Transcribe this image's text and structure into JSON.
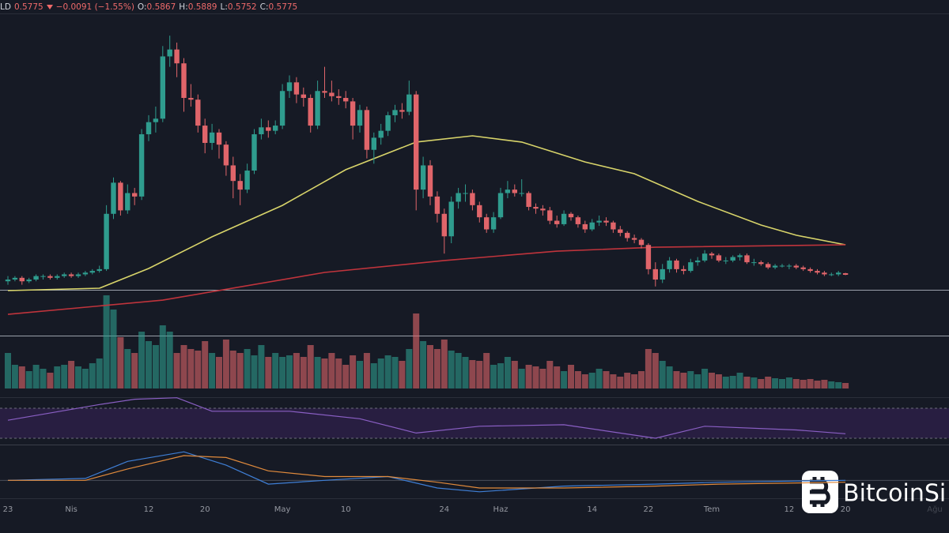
{
  "chart_data": {
    "type": "candlestick",
    "header": {
      "symbol": "LD",
      "change": "−0.0091 (−1.55%)",
      "ohlc_labels": [
        "O:",
        "H:",
        "L:",
        "C:"
      ]
    },
    "categories": [
      "23",
      null,
      null,
      null,
      null,
      null,
      null,
      null,
      null,
      "Nis",
      null,
      null,
      null,
      null,
      null,
      null,
      null,
      null,
      null,
      null,
      "12",
      null,
      null,
      null,
      null,
      null,
      null,
      null,
      "20",
      null,
      null,
      null,
      null,
      null,
      null,
      null,
      null,
      null,
      null,
      "May",
      null,
      null,
      null,
      null,
      null,
      null,
      null,
      null,
      "10",
      null,
      null,
      null,
      null,
      null,
      null,
      null,
      null,
      null,
      null,
      null,
      null,
      null,
      "24",
      null,
      null,
      null,
      null,
      null,
      null,
      null,
      "Haz",
      null,
      null,
      null,
      null,
      null,
      null,
      null,
      null,
      null,
      null,
      null,
      null,
      "14",
      null,
      null,
      null,
      null,
      null,
      null,
      null,
      "22",
      null,
      null,
      null,
      null,
      null,
      null,
      null,
      null,
      "Tem",
      null,
      null,
      null,
      null,
      null,
      null,
      null,
      null,
      null,
      null,
      "12",
      null,
      null,
      null,
      null,
      null,
      null,
      null,
      "20"
    ],
    "x_end_label": "Ağu",
    "up_color": "#2f9c8e",
    "down_color": "#e0656a",
    "ylim": [
      0.226,
      2.084
    ],
    "candles": [
      [
        0.54,
        0.57,
        0.52,
        0.55
      ],
      [
        0.55,
        0.57,
        0.54,
        0.56
      ],
      [
        0.56,
        0.57,
        0.52,
        0.54
      ],
      [
        0.54,
        0.56,
        0.53,
        0.55
      ],
      [
        0.55,
        0.58,
        0.54,
        0.57
      ],
      [
        0.57,
        0.58,
        0.55,
        0.57
      ],
      [
        0.57,
        0.58,
        0.55,
        0.56
      ],
      [
        0.56,
        0.58,
        0.55,
        0.57
      ],
      [
        0.57,
        0.59,
        0.56,
        0.58
      ],
      [
        0.58,
        0.59,
        0.56,
        0.57
      ],
      [
        0.57,
        0.59,
        0.56,
        0.58
      ],
      [
        0.58,
        0.6,
        0.57,
        0.59
      ],
      [
        0.59,
        0.61,
        0.58,
        0.6
      ],
      [
        0.6,
        0.63,
        0.59,
        0.61
      ],
      [
        0.61,
        0.98,
        0.6,
        0.93
      ],
      [
        0.93,
        1.14,
        0.9,
        1.11
      ],
      [
        1.11,
        1.12,
        0.92,
        0.95
      ],
      [
        0.95,
        1.1,
        0.93,
        1.05
      ],
      [
        1.05,
        1.08,
        0.98,
        1.03
      ],
      [
        1.03,
        1.42,
        1.01,
        1.39
      ],
      [
        1.39,
        1.5,
        1.35,
        1.46
      ],
      [
        1.46,
        1.55,
        1.4,
        1.48
      ],
      [
        1.48,
        1.9,
        1.46,
        1.84
      ],
      [
        1.84,
        1.96,
        1.78,
        1.88
      ],
      [
        1.88,
        1.92,
        1.72,
        1.8
      ],
      [
        1.8,
        1.83,
        1.52,
        1.6
      ],
      [
        1.6,
        1.68,
        1.55,
        1.59
      ],
      [
        1.59,
        1.62,
        1.4,
        1.44
      ],
      [
        1.44,
        1.48,
        1.28,
        1.34
      ],
      [
        1.34,
        1.45,
        1.3,
        1.4
      ],
      [
        1.4,
        1.42,
        1.25,
        1.33
      ],
      [
        1.33,
        1.35,
        1.15,
        1.21
      ],
      [
        1.21,
        1.26,
        1.02,
        1.12
      ],
      [
        1.12,
        1.16,
        0.98,
        1.07
      ],
      [
        1.07,
        1.22,
        1.05,
        1.18
      ],
      [
        1.18,
        1.42,
        1.16,
        1.39
      ],
      [
        1.39,
        1.48,
        1.36,
        1.43
      ],
      [
        1.43,
        1.47,
        1.37,
        1.41
      ],
      [
        1.41,
        1.47,
        1.39,
        1.44
      ],
      [
        1.44,
        1.68,
        1.42,
        1.64
      ],
      [
        1.64,
        1.73,
        1.6,
        1.69
      ],
      [
        1.69,
        1.72,
        1.57,
        1.62
      ],
      [
        1.62,
        1.66,
        1.55,
        1.6
      ],
      [
        1.6,
        1.62,
        1.4,
        1.44
      ],
      [
        1.44,
        1.7,
        1.42,
        1.64
      ],
      [
        1.64,
        1.78,
        1.6,
        1.63
      ],
      [
        1.63,
        1.7,
        1.58,
        1.61
      ],
      [
        1.61,
        1.65,
        1.56,
        1.6
      ],
      [
        1.6,
        1.64,
        1.54,
        1.58
      ],
      [
        1.58,
        1.6,
        1.36,
        1.44
      ],
      [
        1.44,
        1.56,
        1.4,
        1.53
      ],
      [
        1.53,
        1.55,
        1.25,
        1.3
      ],
      [
        1.3,
        1.4,
        1.22,
        1.37
      ],
      [
        1.37,
        1.45,
        1.33,
        1.41
      ],
      [
        1.41,
        1.52,
        1.38,
        1.5
      ],
      [
        1.5,
        1.56,
        1.46,
        1.53
      ],
      [
        1.53,
        1.57,
        1.48,
        1.52
      ],
      [
        1.52,
        1.7,
        1.5,
        1.62
      ],
      [
        1.62,
        1.64,
        0.95,
        1.07
      ],
      [
        1.07,
        1.26,
        1.02,
        1.21
      ],
      [
        1.21,
        1.24,
        0.98,
        1.03
      ],
      [
        1.03,
        1.06,
        0.88,
        0.93
      ],
      [
        0.93,
        0.96,
        0.7,
        0.8
      ],
      [
        0.8,
        1.03,
        0.76,
        1.0
      ],
      [
        1.0,
        1.08,
        0.96,
        1.05
      ],
      [
        1.05,
        1.1,
        1.0,
        1.05
      ],
      [
        1.05,
        1.07,
        0.95,
        0.98
      ],
      [
        0.98,
        1.0,
        0.88,
        0.91
      ],
      [
        0.91,
        0.93,
        0.82,
        0.84
      ],
      [
        0.84,
        0.94,
        0.82,
        0.91
      ],
      [
        0.91,
        1.08,
        0.9,
        1.05
      ],
      [
        1.05,
        1.12,
        1.02,
        1.07
      ],
      [
        1.07,
        1.1,
        1.03,
        1.05
      ],
      [
        1.05,
        1.13,
        1.03,
        1.05
      ],
      [
        1.05,
        1.06,
        0.95,
        0.97
      ],
      [
        0.97,
        0.99,
        0.93,
        0.96
      ],
      [
        0.96,
        0.98,
        0.92,
        0.95
      ],
      [
        0.95,
        0.97,
        0.87,
        0.89
      ],
      [
        0.89,
        0.92,
        0.85,
        0.87
      ],
      [
        0.87,
        0.95,
        0.86,
        0.93
      ],
      [
        0.93,
        0.94,
        0.89,
        0.91
      ],
      [
        0.91,
        0.92,
        0.85,
        0.87
      ],
      [
        0.87,
        0.89,
        0.82,
        0.84
      ],
      [
        0.84,
        0.9,
        0.83,
        0.88
      ],
      [
        0.88,
        0.92,
        0.86,
        0.89
      ],
      [
        0.89,
        0.91,
        0.86,
        0.88
      ],
      [
        0.88,
        0.89,
        0.82,
        0.84
      ],
      [
        0.84,
        0.86,
        0.8,
        0.82
      ],
      [
        0.82,
        0.83,
        0.77,
        0.79
      ],
      [
        0.79,
        0.81,
        0.76,
        0.78
      ],
      [
        0.78,
        0.79,
        0.73,
        0.75
      ],
      [
        0.75,
        0.76,
        0.58,
        0.61
      ],
      [
        0.61,
        0.65,
        0.51,
        0.55
      ],
      [
        0.55,
        0.64,
        0.53,
        0.61
      ],
      [
        0.61,
        0.68,
        0.59,
        0.66
      ],
      [
        0.66,
        0.67,
        0.59,
        0.61
      ],
      [
        0.61,
        0.63,
        0.58,
        0.6
      ],
      [
        0.6,
        0.67,
        0.59,
        0.65
      ],
      [
        0.65,
        0.68,
        0.63,
        0.66
      ],
      [
        0.66,
        0.72,
        0.65,
        0.7
      ],
      [
        0.7,
        0.71,
        0.67,
        0.69
      ],
      [
        0.69,
        0.7,
        0.65,
        0.66
      ],
      [
        0.66,
        0.68,
        0.64,
        0.66
      ],
      [
        0.66,
        0.69,
        0.65,
        0.68
      ],
      [
        0.68,
        0.7,
        0.66,
        0.69
      ],
      [
        0.69,
        0.7,
        0.64,
        0.65
      ],
      [
        0.65,
        0.67,
        0.63,
        0.65
      ],
      [
        0.65,
        0.66,
        0.63,
        0.64
      ],
      [
        0.64,
        0.65,
        0.61,
        0.62
      ],
      [
        0.62,
        0.64,
        0.61,
        0.63
      ],
      [
        0.63,
        0.64,
        0.62,
        0.63
      ],
      [
        0.63,
        0.64,
        0.61,
        0.63
      ],
      [
        0.63,
        0.64,
        0.61,
        0.62
      ],
      [
        0.62,
        0.63,
        0.6,
        0.61
      ],
      [
        0.61,
        0.62,
        0.59,
        0.6
      ],
      [
        0.6,
        0.61,
        0.58,
        0.59
      ],
      [
        0.59,
        0.6,
        0.57,
        0.58
      ],
      [
        0.58,
        0.59,
        0.57,
        0.58
      ],
      [
        0.58,
        0.6,
        0.57,
        0.59
      ],
      [
        0.5867,
        0.5889,
        0.5752,
        0.5775
      ]
    ],
    "ma": [
      {
        "color": "#d8d46a",
        "x": [
          0,
          13,
          20,
          29,
          39,
          48,
          58,
          66,
          73,
          82,
          89,
          98,
          107,
          112,
          119
        ],
        "values": [
          0.486,
          0.5,
          0.614,
          0.797,
          0.979,
          1.185,
          1.345,
          1.381,
          1.345,
          1.23,
          1.162,
          1.002,
          0.865,
          0.806,
          0.751
        ]
      },
      {
        "color": "#c0343c",
        "x": [
          0,
          22,
          45,
          62,
          78,
          92,
          119
        ],
        "values": [
          0.349,
          0.431,
          0.591,
          0.66,
          0.714,
          0.737,
          0.751
        ]
      }
    ],
    "volume": {
      "ylim": [
        0,
        120
      ],
      "values": [
        45,
        30,
        28,
        22,
        30,
        25,
        20,
        28,
        30,
        35,
        28,
        25,
        32,
        38,
        118,
        100,
        65,
        50,
        45,
        72,
        60,
        55,
        80,
        72,
        45,
        55,
        50,
        48,
        60,
        45,
        40,
        62,
        48,
        45,
        50,
        42,
        55,
        40,
        45,
        40,
        42,
        45,
        40,
        55,
        40,
        38,
        45,
        38,
        30,
        42,
        35,
        45,
        32,
        38,
        42,
        40,
        35,
        50,
        95,
        60,
        55,
        50,
        62,
        48,
        45,
        40,
        36,
        35,
        45,
        30,
        32,
        40,
        35,
        25,
        30,
        28,
        25,
        35,
        28,
        22,
        30,
        22,
        18,
        20,
        25,
        22,
        18,
        15,
        20,
        18,
        22,
        50,
        45,
        35,
        28,
        22,
        20,
        22,
        18,
        25,
        20,
        18,
        15,
        16,
        20,
        15,
        14,
        12,
        15,
        13,
        12,
        14,
        12,
        11,
        12,
        10,
        11,
        9,
        8,
        7
      ]
    },
    "rsi": {
      "ylim": [
        0,
        100
      ],
      "bands": [
        30,
        70
      ],
      "color": "#8a5fc4",
      "x": [
        0,
        13,
        18,
        24,
        29,
        40,
        50,
        58,
        67,
        79,
        92,
        99,
        112,
        119
      ],
      "values": [
        54,
        75,
        82,
        84,
        66,
        66,
        56,
        37,
        46,
        48,
        30,
        46,
        41,
        36
      ]
    },
    "macd": {
      "ylim": [
        -0.09,
        0.18
      ],
      "series": [
        {
          "color": "#3f7fd6",
          "x": [
            0,
            11,
            17,
            25,
            31,
            37,
            45,
            54,
            61,
            67,
            79,
            92,
            101,
            119
          ],
          "values": [
            0,
            0.01,
            0.1,
            0.15,
            0.08,
            -0.02,
            0.0,
            0.02,
            -0.04,
            -0.06,
            -0.03,
            -0.02,
            -0.01,
            0.0
          ]
        },
        {
          "color": "#e08a3c",
          "x": [
            0,
            11,
            17,
            25,
            31,
            37,
            45,
            54,
            61,
            67,
            79,
            92,
            101,
            119
          ],
          "values": [
            0,
            0.0,
            0.06,
            0.13,
            0.12,
            0.05,
            0.02,
            0.02,
            -0.01,
            -0.04,
            -0.04,
            -0.03,
            -0.02,
            -0.01
          ]
        }
      ]
    },
    "watermark": "BitcoinSi"
  }
}
